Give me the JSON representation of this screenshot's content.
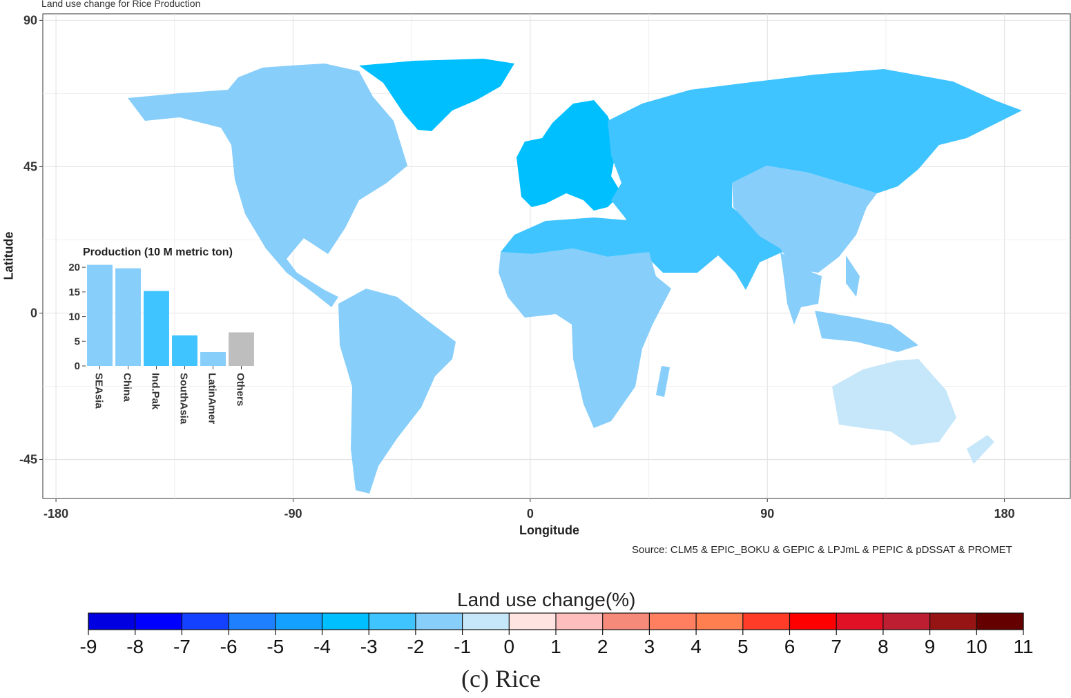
{
  "figure": {
    "plot_title": "Land use change for Rice Production",
    "source_note": "Source: CLM5 & EPIC_BOKU & GEPIC & LPJmL & PEPIC & pDSSAT & PROMET",
    "caption": "(c) Rice"
  },
  "map": {
    "xlabel": "Longitude",
    "ylabel": "Latitude",
    "x_ticks": [
      "-180",
      "-90",
      "0",
      "90",
      "180"
    ],
    "y_ticks": [
      "90",
      "45",
      "0",
      "-45"
    ],
    "xlim": [
      -185,
      205
    ],
    "ylim": [
      -57,
      92
    ],
    "grid": true,
    "regions": [
      {
        "name": "North America",
        "change_class": "-2 to -1",
        "color": "#87CEFA"
      },
      {
        "name": "Latin America",
        "change_class": "-2 to -1",
        "color": "#87CEFA"
      },
      {
        "name": "Greenland",
        "change_class": "-4 to -3",
        "color": "#00BFFF"
      },
      {
        "name": "Europe",
        "change_class": "-4 to -3",
        "color": "#00BFFF"
      },
      {
        "name": "Russia & Central/South Asia & Middle East",
        "change_class": "-3 to -2",
        "color": "#40C4FF"
      },
      {
        "name": "North Africa",
        "change_class": "-3 to -2",
        "color": "#40C4FF"
      },
      {
        "name": "Sub-Saharan Africa",
        "change_class": "-2 to -1",
        "color": "#87CEFA"
      },
      {
        "name": "China",
        "change_class": "-2 to -1",
        "color": "#87CEFA"
      },
      {
        "name": "Southeast Asia",
        "change_class": "-2 to -1",
        "color": "#87CEFA"
      },
      {
        "name": "Australia & New Zealand",
        "change_class": "-1 to 0",
        "color": "#C6E6FA"
      }
    ]
  },
  "chart_data": {
    "type": "bar",
    "title": "Production (10 M metric ton)",
    "categories": [
      "SEAsia",
      "China",
      "Ind.Pak",
      "SouthAsia",
      "LatinAmer",
      "Others"
    ],
    "values": [
      20.5,
      19.8,
      15.2,
      6.2,
      2.8,
      6.8
    ],
    "colors": [
      "#87CEFA",
      "#87CEFA",
      "#40C4FF",
      "#40C4FF",
      "#87CEFA",
      "#BEBEBE"
    ],
    "y_ticks": [
      "0",
      "5",
      "10",
      "15",
      "20"
    ],
    "ylim": [
      0,
      21
    ]
  },
  "legend": {
    "title": "Land use change(%)",
    "labels": [
      "-9",
      "-8",
      "-7",
      "-6",
      "-5",
      "-4",
      "-3",
      "-2",
      "-1",
      "0",
      "1",
      "2",
      "3",
      "4",
      "5",
      "6",
      "7",
      "8",
      "9",
      "10",
      "11"
    ],
    "colors": [
      "#0000E0",
      "#0000FF",
      "#1440FF",
      "#1E7FFF",
      "#14A0FF",
      "#00BFFF",
      "#40C4FF",
      "#87CEFA",
      "#C6E6FA",
      "#FFE4E1",
      "#FFBEBE",
      "#F58A7A",
      "#FF7F60",
      "#FF7F50",
      "#FF3C28",
      "#FF0000",
      "#E01025",
      "#BE1E32",
      "#961414",
      "#640000"
    ]
  }
}
